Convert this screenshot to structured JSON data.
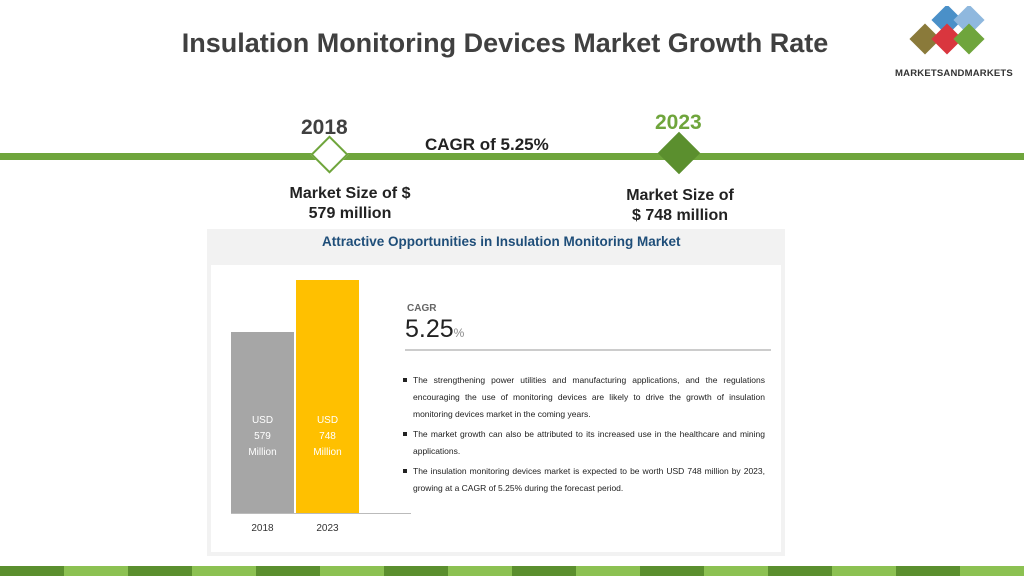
{
  "slide": {
    "title": "Insulation Monitoring Devices Market Growth Rate",
    "brand": "MARKETSANDMARKETS",
    "brand_colors": [
      "#4a90c8",
      "#d9363e",
      "#6fa53c",
      "#8a7a3a"
    ]
  },
  "timeline": {
    "start_year": "2018",
    "end_year": "2023",
    "cagr_text": "CAGR of 5.25%",
    "start_market_size": [
      "Market Size of $",
      "579 million"
    ],
    "end_market_size": [
      "Market Size of",
      "$ 748 million"
    ],
    "accent_color": "#6fa53c"
  },
  "panel": {
    "title": "Attractive Opportunities in Insulation Monitoring Market",
    "cagr_label": "CAGR",
    "cagr_value": "5.25",
    "cagr_unit": "%",
    "bullets": [
      "The strengthening power utilities and manufacturing applications, and the regulations encouraging the use of monitoring devices are likely to drive the growth of insulation monitoring devices market in the coming years.",
      "The market growth can also be attributed to its increased use in the healthcare and mining applications.",
      "The insulation monitoring devices market is expected to be worth USD 748 million by 2023, growing at a CAGR of 5.25% during the forecast period."
    ]
  },
  "chart_data": {
    "type": "bar",
    "categories": [
      "2018",
      "2023"
    ],
    "values": [
      579,
      748
    ],
    "bar_labels": [
      [
        "USD",
        "579",
        "Million"
      ],
      [
        "USD",
        "748",
        "Million"
      ]
    ],
    "colors": [
      "#a6a6a6",
      "#ffc000"
    ],
    "ylim": [
      0,
      800
    ],
    "grid": false
  }
}
